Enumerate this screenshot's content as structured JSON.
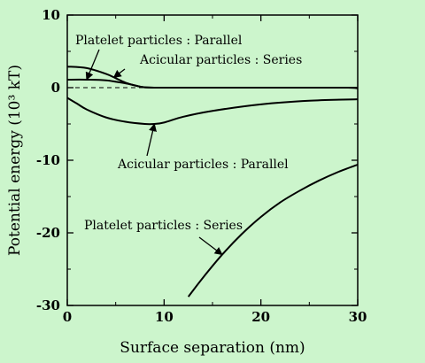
{
  "background": "#ccf5cc",
  "chart_data": {
    "type": "line",
    "xlabel": "Surface separation (nm)",
    "ylabel": "Potential energy (10³ kT)",
    "xlim": [
      0,
      30
    ],
    "ylim": [
      -30,
      10
    ],
    "x_ticks": [
      0,
      10,
      20,
      30
    ],
    "y_ticks": [
      10,
      0,
      -10,
      -20,
      -30
    ],
    "x_tick_labels": [
      "0",
      "10",
      "20",
      "30"
    ],
    "y_tick_labels": [
      "10",
      "0",
      "-10",
      "-20",
      "-30"
    ],
    "grid": false,
    "zero_line": "dashed",
    "series": [
      {
        "name": "Platelet particles : Parallel",
        "x": [
          0,
          2,
          4,
          6,
          7,
          8,
          10,
          15,
          20,
          25,
          29,
          30
        ],
        "y": [
          1.1,
          1.1,
          1.0,
          0.6,
          0.3,
          0.05,
          0,
          0,
          0,
          0,
          0,
          0
        ]
      },
      {
        "name": "Acicular particles : Series",
        "x": [
          0,
          2,
          4,
          5,
          6,
          7,
          8,
          10,
          15,
          20,
          25,
          29,
          30
        ],
        "y": [
          2.9,
          2.7,
          1.9,
          1.3,
          0.7,
          0.3,
          0.05,
          0,
          0,
          0,
          0,
          0,
          -0.1
        ]
      },
      {
        "name": "Acicular particles : Parallel",
        "x": [
          0,
          1,
          2,
          4,
          6,
          8,
          9,
          10,
          12,
          15,
          20,
          25,
          30
        ],
        "y": [
          -1.4,
          -2.2,
          -3.0,
          -4.1,
          -4.7,
          -5.0,
          -5.0,
          -4.8,
          -4.0,
          -3.2,
          -2.3,
          -1.8,
          -1.6
        ]
      },
      {
        "name": "Platelet particles : Series",
        "x": [
          12.5,
          14,
          16,
          18,
          20,
          22,
          24,
          26,
          28,
          30
        ],
        "y": [
          -28.8,
          -26.2,
          -23.0,
          -20.2,
          -17.8,
          -15.8,
          -14.2,
          -12.8,
          -11.6,
          -10.6
        ]
      }
    ],
    "annotations": [
      {
        "text": "Platelet particles : Parallel",
        "series": 0,
        "arrow_to": [
          2.0,
          1.1
        ]
      },
      {
        "text": "Acicular particles : Series",
        "series": 1,
        "arrow_to": [
          4.8,
          1.4
        ]
      },
      {
        "text": "Acicular particles : Parallel",
        "series": 2,
        "arrow_to": [
          9.0,
          -5.0
        ]
      },
      {
        "text": "Platelet particles : Series",
        "series": 3,
        "arrow_to": [
          16.0,
          -23.0
        ]
      }
    ]
  }
}
